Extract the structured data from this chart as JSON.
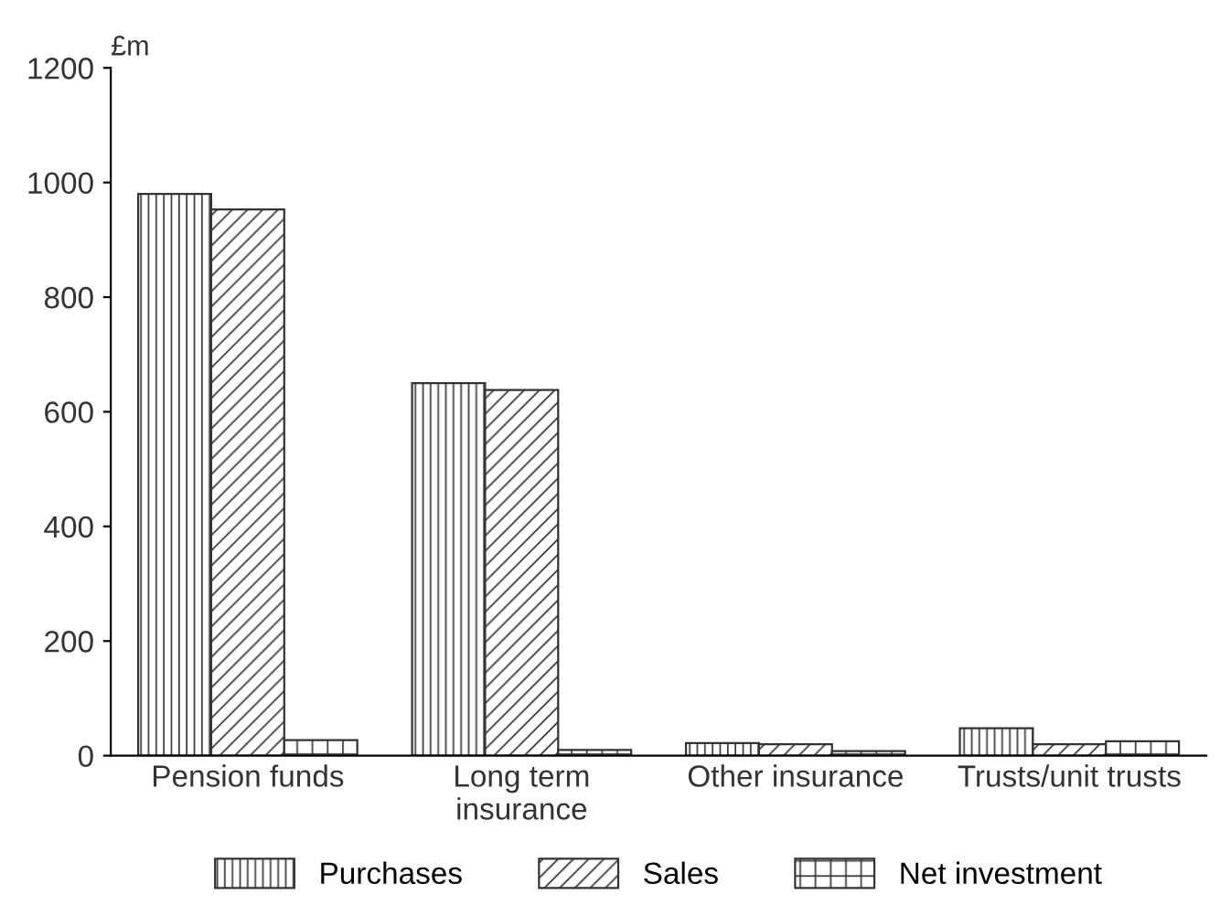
{
  "chart_data": {
    "type": "bar",
    "ylabel": "£m",
    "categories": [
      "Pension funds",
      "Long term\ninsurance",
      "Other insurance",
      "Trusts/unit trusts"
    ],
    "series": [
      {
        "name": "Purchases",
        "color": "#333333",
        "values": [
          980,
          650,
          22,
          48
        ]
      },
      {
        "name": "Sales",
        "color": "#333333",
        "values": [
          953,
          638,
          20,
          20
        ]
      },
      {
        "name": "Net investment",
        "color": "#333333",
        "values": [
          27,
          10,
          8,
          25
        ]
      }
    ],
    "ylim": [
      0,
      1200
    ],
    "yticks": [
      0,
      200,
      400,
      600,
      800,
      1000,
      1200
    ],
    "grid": false,
    "legend": "bottom"
  }
}
